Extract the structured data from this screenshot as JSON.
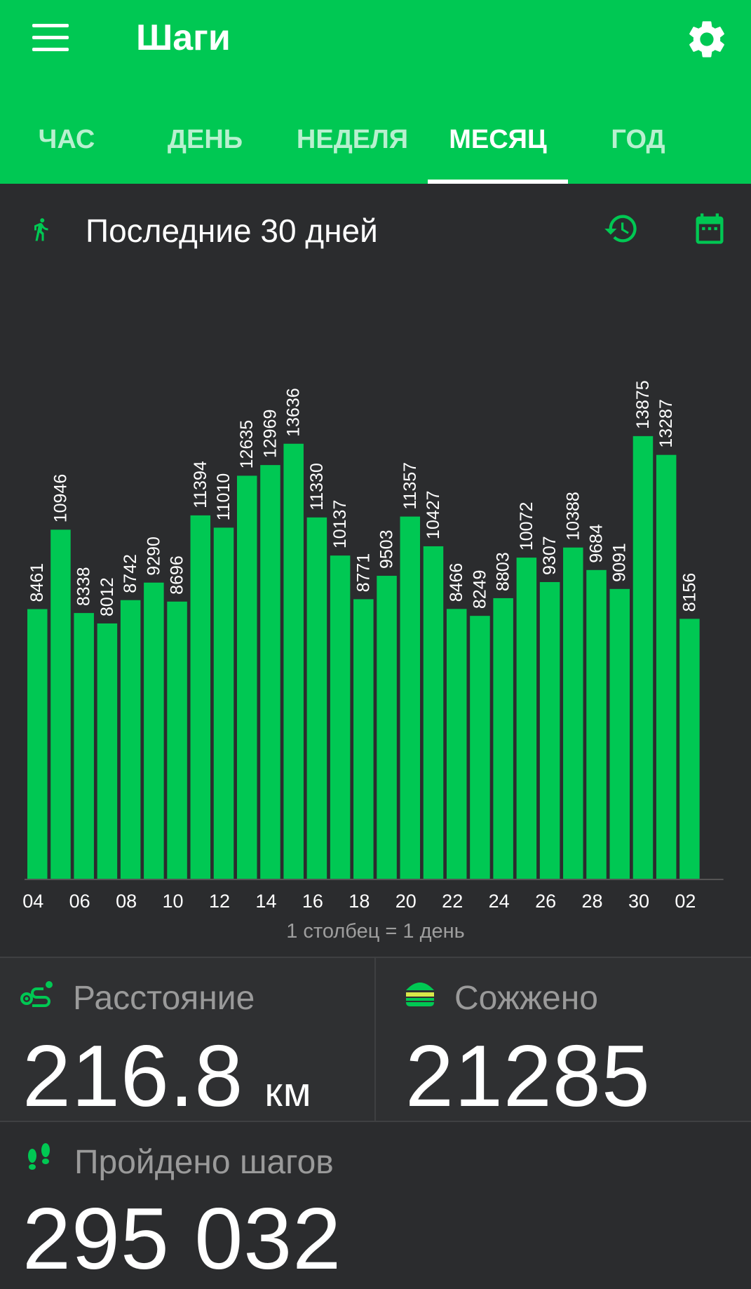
{
  "app": {
    "title": "Шаги"
  },
  "tabs": [
    "ЧАС",
    "ДЕНЬ",
    "НЕДЕЛЯ",
    "МЕСЯЦ",
    "ГОД"
  ],
  "active_tab": "МЕСЯЦ",
  "section": {
    "title": "Последние 30 дней"
  },
  "chart_note": "1 столбец = 1 день",
  "chart_data": {
    "type": "bar",
    "categories": [
      "04",
      "05",
      "06",
      "07",
      "08",
      "09",
      "10",
      "11",
      "12",
      "13",
      "14",
      "15",
      "16",
      "17",
      "18",
      "19",
      "20",
      "21",
      "22",
      "23",
      "24",
      "25",
      "26",
      "27",
      "28",
      "29",
      "30",
      "01",
      "02"
    ],
    "values": [
      8461,
      10946,
      8338,
      8012,
      8742,
      9290,
      8696,
      11394,
      11010,
      12635,
      12969,
      13636,
      11330,
      10137,
      8771,
      9503,
      11357,
      10427,
      8466,
      8249,
      8803,
      10072,
      9307,
      10388,
      9684,
      9091,
      13875,
      13287,
      8156
    ],
    "tick_labels": [
      "04",
      "06",
      "08",
      "10",
      "12",
      "14",
      "16",
      "18",
      "20",
      "22",
      "24",
      "26",
      "28",
      "30",
      "02"
    ],
    "bar_color": "#00c853",
    "ylim": [
      0,
      16000
    ],
    "grid": false
  },
  "stats": {
    "distance": {
      "label": "Расстояние",
      "value": "216.8",
      "unit": "км"
    },
    "burned": {
      "label": "Сожжено",
      "value": "21285"
    },
    "steps": {
      "label": "Пройдено шагов",
      "value": "295 032"
    }
  },
  "colors": {
    "accent": "#00c853",
    "background": "#2b2c2e",
    "panel": "#2f3032"
  }
}
